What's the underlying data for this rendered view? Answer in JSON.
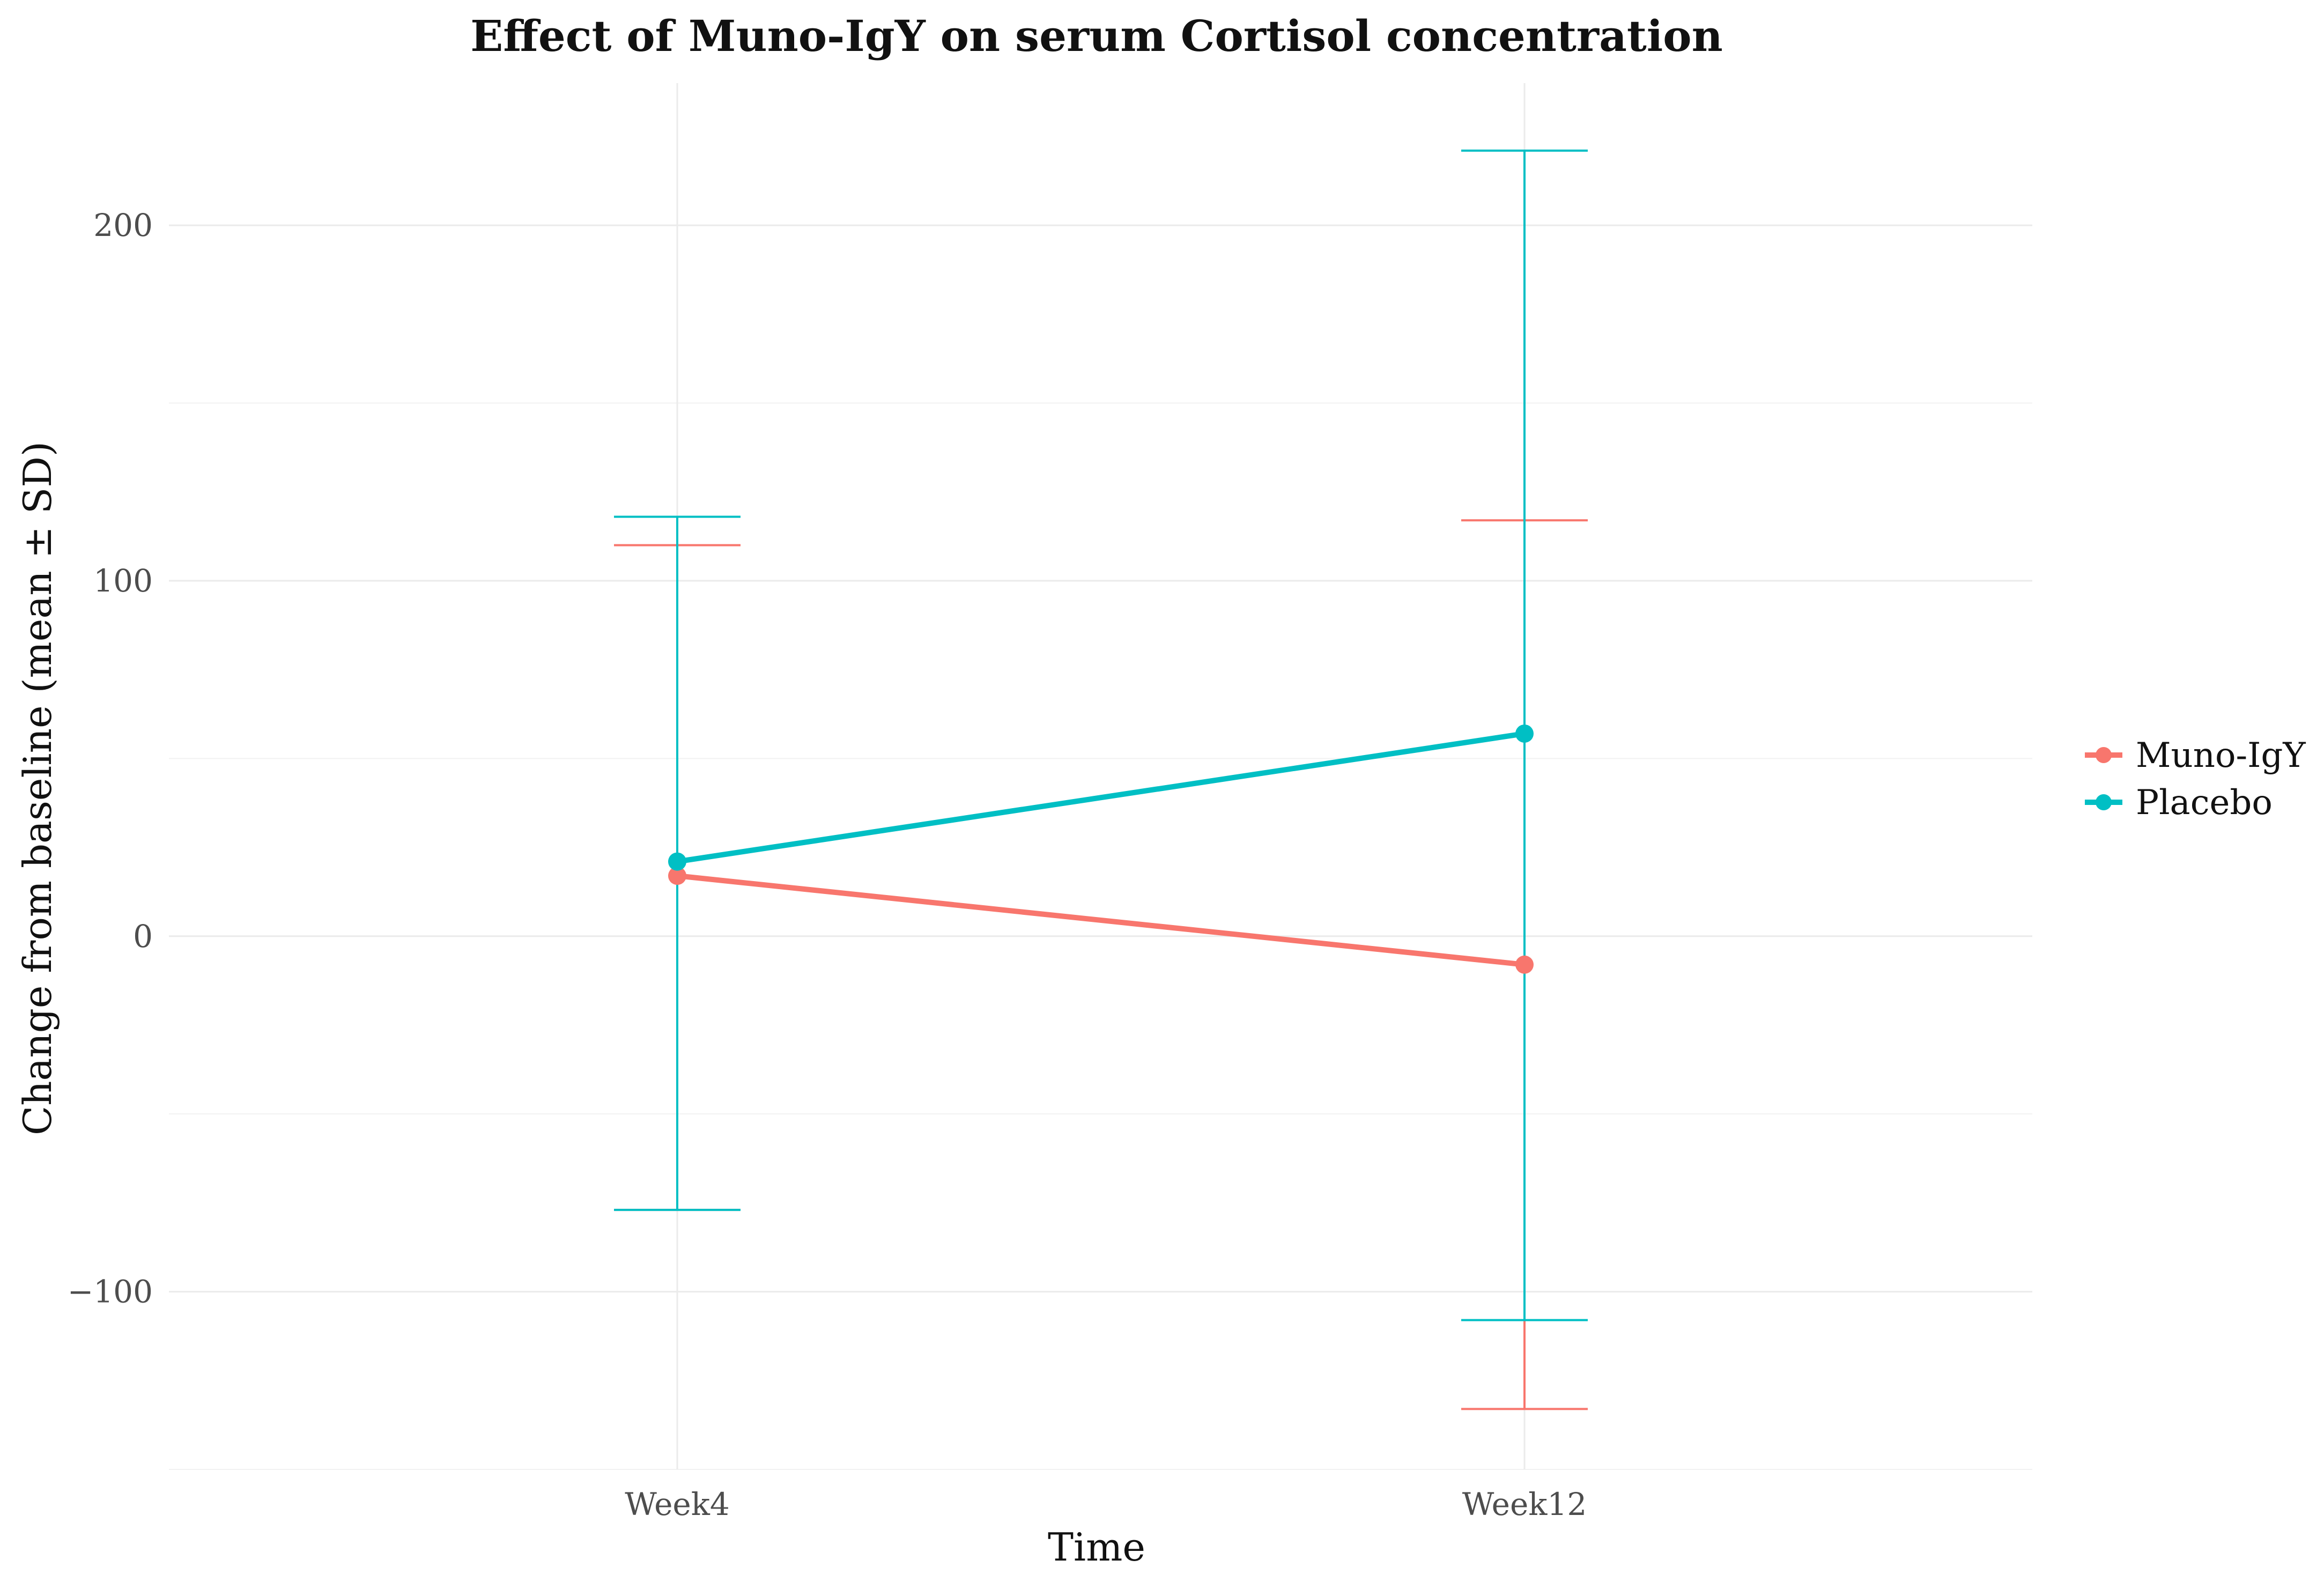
{
  "chart_data": {
    "type": "line",
    "title": "Effect of Muno-IgY on serum Cortisol concentration",
    "xlabel": "Time",
    "ylabel": "Change from baseline (mean ± SD)",
    "categories": [
      "Week4",
      "Week12"
    ],
    "ylim": [
      -150,
      240
    ],
    "yticks": [
      -100,
      0,
      100,
      200
    ],
    "grid": true,
    "legend_position": "right",
    "series": [
      {
        "name": "Muno-IgY",
        "color": "#F8766D",
        "values": [
          17,
          -8
        ],
        "sd_lower": [
          -77,
          -133
        ],
        "sd_upper": [
          110,
          117
        ]
      },
      {
        "name": "Placebo",
        "color": "#00BFC4",
        "values": [
          21,
          57
        ],
        "sd_lower": [
          -77,
          -108
        ],
        "sd_upper": [
          118,
          221
        ]
      }
    ]
  }
}
